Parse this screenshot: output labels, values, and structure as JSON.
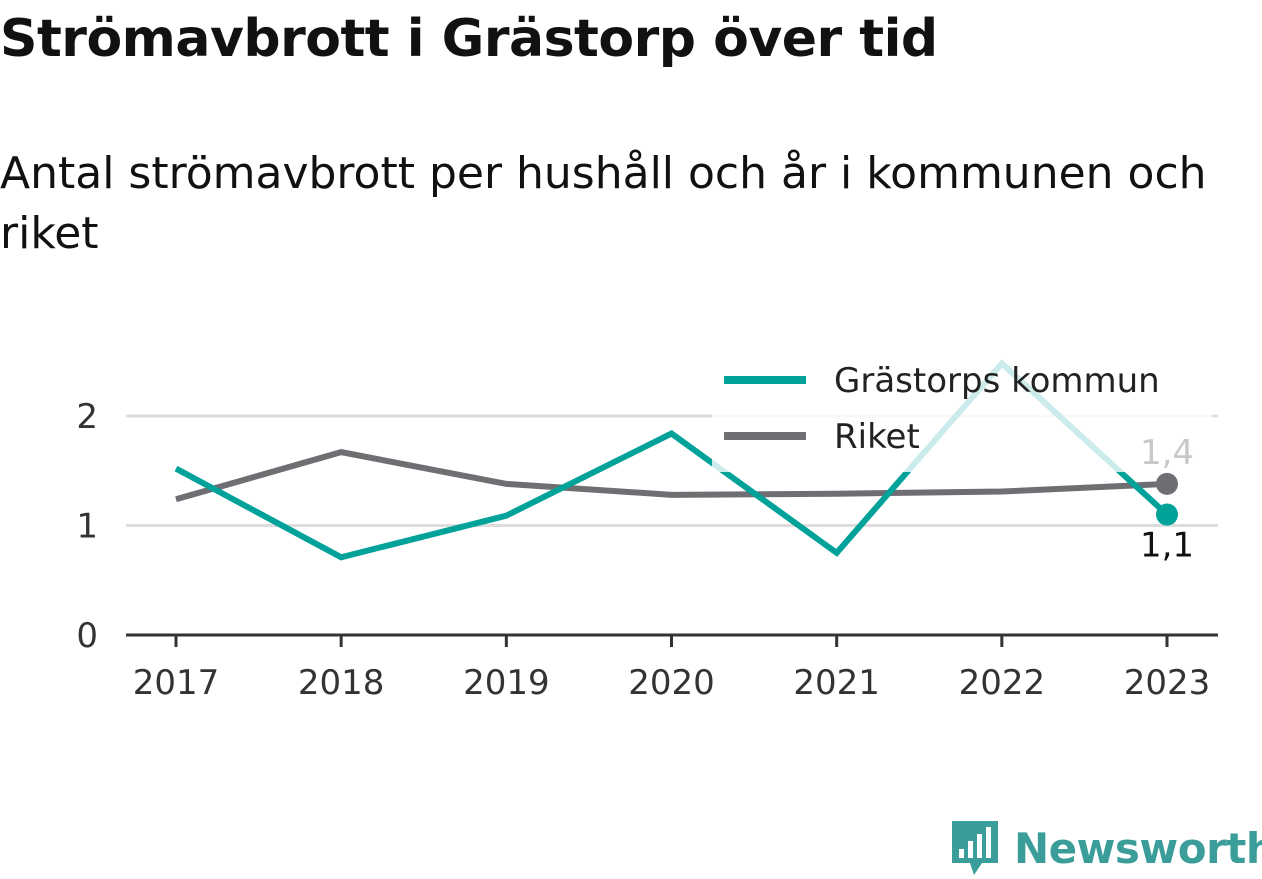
{
  "header": {
    "title": "Strömavbrott i Grästorp över tid",
    "subtitle": "Antal strömavbrott per hushåll och år i kommunen och riket"
  },
  "brand": {
    "name": "Newsworthy",
    "logo_icon": "bar-chart-speech-bubble-icon",
    "color": "#3a9d99"
  },
  "chart_data": {
    "type": "line",
    "x": [
      "2017",
      "2018",
      "2019",
      "2020",
      "2021",
      "2022",
      "2023"
    ],
    "y_ticks": [
      "0",
      "1",
      "2"
    ],
    "ylim": [
      0,
      2.5
    ],
    "grid": true,
    "legend_position": "top-right",
    "series": [
      {
        "name": "Grästorps kommun",
        "color": "#00a29a",
        "values": [
          1.52,
          0.71,
          1.09,
          1.84,
          0.75,
          2.48,
          1.1
        ],
        "end_label": "1,1"
      },
      {
        "name": "Riket",
        "color": "#6e6e73",
        "values": [
          1.24,
          1.67,
          1.38,
          1.28,
          1.29,
          1.31,
          1.38
        ],
        "end_label": "1,4"
      }
    ]
  }
}
